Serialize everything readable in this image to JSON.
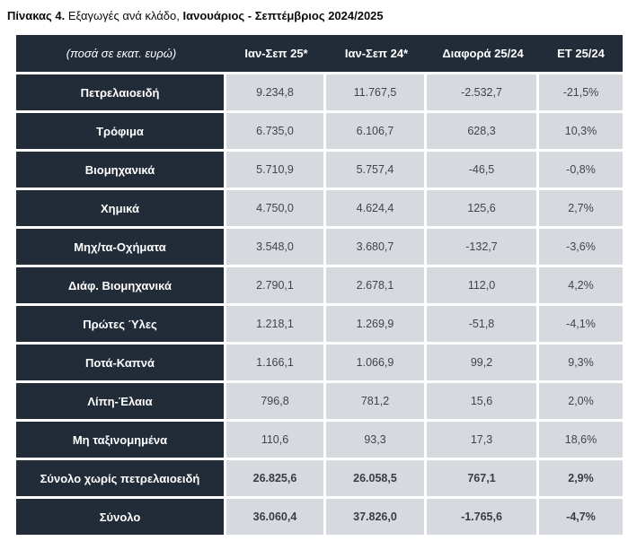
{
  "title_parts": {
    "label": "Πίνακας 4.",
    "description": " Εξαγωγές ανά κλάδο, ",
    "period": "Ιανουάριος - Σεπτέμβριος 2024/2025"
  },
  "colors": {
    "dark_cell": "#222b38",
    "light_cell": "#d6dade",
    "separator": "#ffffff",
    "header_text": "#ffffff",
    "value_text": "#40454c"
  },
  "chart_data": {
    "type": "table",
    "title": "Πίνακας 4. Εξαγωγές ανά κλάδο, Ιανουάριος - Σεπτέμβριος 2024/2025",
    "unit_note": "(ποσά σε εκατ. ευρώ)",
    "columns": [
      "Ιαν-Σεπ 25*",
      "Ιαν-Σεπ 24*",
      "Διαφορά 25/24",
      "ΕΤ 25/24"
    ],
    "rows": [
      {
        "label": "Πετρελαιοειδή",
        "values": [
          "9.234,8",
          "11.767,5",
          "-2.532,7",
          "-21,5%"
        ]
      },
      {
        "label": "Τρόφιμα",
        "values": [
          "6.735,0",
          "6.106,7",
          "628,3",
          "10,3%"
        ]
      },
      {
        "label": "Βιομηχανικά",
        "values": [
          "5.710,9",
          "5.757,4",
          "-46,5",
          "-0,8%"
        ]
      },
      {
        "label": "Χημικά",
        "values": [
          "4.750,0",
          "4.624,4",
          "125,6",
          "2,7%"
        ]
      },
      {
        "label": "Μηχ/τα-Οχήματα",
        "values": [
          "3.548,0",
          "3.680,7",
          "-132,7",
          "-3,6%"
        ]
      },
      {
        "label": "Διάφ. Βιομηχανικά",
        "values": [
          "2.790,1",
          "2.678,1",
          "112,0",
          "4,2%"
        ]
      },
      {
        "label": "Πρώτες Ύλες",
        "values": [
          "1.218,1",
          "1.269,9",
          "-51,8",
          "-4,1%"
        ]
      },
      {
        "label": "Ποτά-Καπνά",
        "values": [
          "1.166,1",
          "1.066,9",
          "99,2",
          "9,3%"
        ]
      },
      {
        "label": "Λίπη-Έλαια",
        "values": [
          "796,8",
          "781,2",
          "15,6",
          "2,0%"
        ]
      },
      {
        "label": "Μη ταξινομημένα",
        "values": [
          "110,6",
          "93,3",
          "17,3",
          "18,6%"
        ]
      },
      {
        "label": "Σύνολο χωρίς πετρελαιοειδή",
        "values": [
          "26.825,6",
          "26.058,5",
          "767,1",
          "2,9%"
        ]
      },
      {
        "label": "Σύνολο",
        "values": [
          "36.060,4",
          "37.826,0",
          "-1.765,6",
          "-4,7%"
        ]
      }
    ]
  }
}
